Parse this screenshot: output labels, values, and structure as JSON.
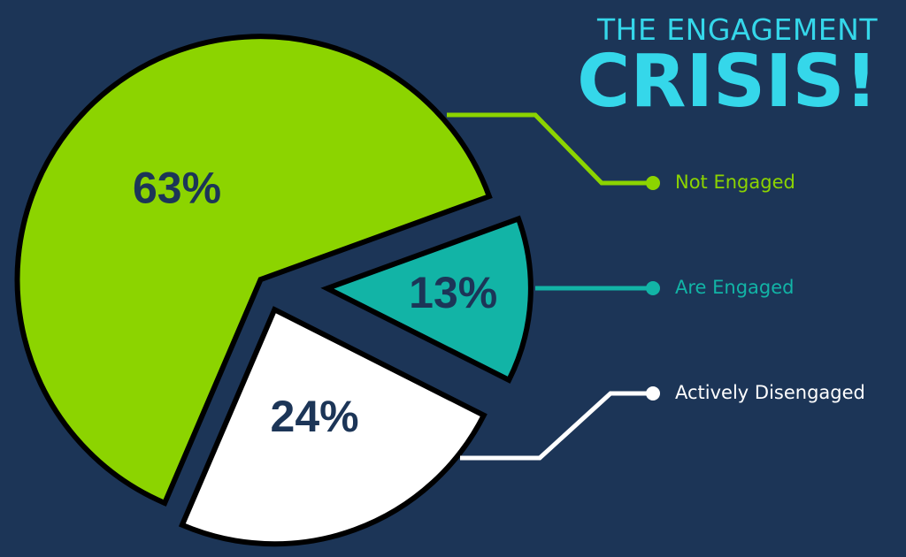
{
  "chart_data": {
    "type": "pie",
    "title_lines": [
      "THE ENGAGEMENT",
      "CRISIS!"
    ],
    "categories": [
      "Not Engaged",
      "Are Engaged",
      "Actively Disengaged"
    ],
    "values": [
      63,
      13,
      24
    ],
    "value_labels": [
      "63%",
      "13%",
      "24%"
    ],
    "colors": [
      "#8cd400",
      "#12b4a6",
      "#ffffff"
    ]
  }
}
